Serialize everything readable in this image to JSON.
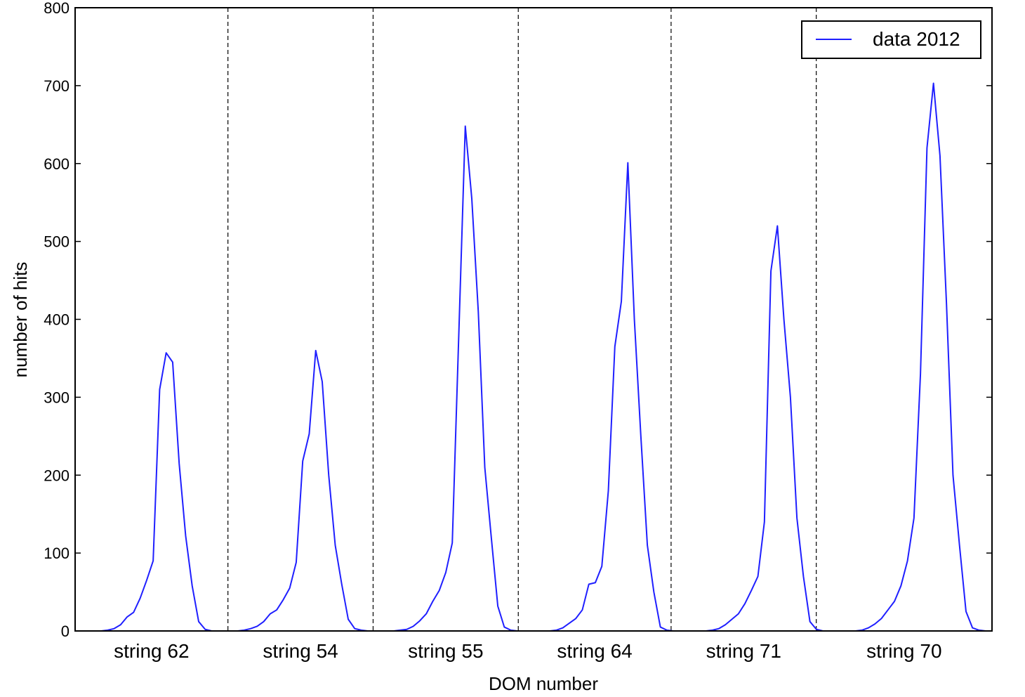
{
  "chart_data": {
    "type": "line",
    "title": "",
    "xlabel": "DOM number",
    "ylabel": "number of hits",
    "ylim": [
      0,
      800
    ],
    "xlim": [
      0,
      120
    ],
    "yticks": [
      0,
      100,
      200,
      300,
      400,
      500,
      600,
      700,
      800
    ],
    "grid": false,
    "legend": {
      "position": "top-right",
      "entries": [
        "data 2012"
      ]
    },
    "colors": {
      "series": "#1f1fff",
      "axis": "#000000",
      "separator": "#000000"
    },
    "groups": [
      {
        "label": "string 62",
        "start": 0,
        "end": 20
      },
      {
        "label": "string 54",
        "start": 20,
        "end": 39
      },
      {
        "label": "string 55",
        "start": 39,
        "end": 58
      },
      {
        "label": "string 64",
        "start": 58,
        "end": 78
      },
      {
        "label": "string 71",
        "start": 78,
        "end": 97
      },
      {
        "label": "string 70",
        "start": 97,
        "end": 120
      }
    ],
    "separators": [
      20,
      39,
      58,
      78,
      97
    ],
    "series": [
      {
        "name": "data 2012",
        "values": [
          0,
          0,
          0,
          0,
          0,
          1,
          3,
          8,
          18,
          24,
          42,
          65,
          90,
          310,
          357,
          345,
          215,
          122,
          58,
          12,
          2,
          0,
          0,
          0,
          0,
          0,
          1,
          3,
          6,
          12,
          22,
          27,
          40,
          55,
          88,
          218,
          253,
          360,
          320,
          200,
          110,
          60,
          15,
          3,
          1,
          0,
          0,
          0,
          0,
          0,
          1,
          2,
          6,
          13,
          22,
          38,
          52,
          75,
          113,
          380,
          648,
          555,
          410,
          210,
          120,
          32,
          5,
          1,
          0,
          0,
          0,
          0,
          0,
          0,
          1,
          4,
          10,
          16,
          27,
          60,
          62,
          83,
          180,
          365,
          423,
          601,
          400,
          250,
          110,
          50,
          5,
          1,
          0,
          0,
          0,
          0,
          0,
          0,
          1,
          3,
          8,
          15,
          22,
          35,
          52,
          70,
          140,
          462,
          520,
          400,
          300,
          145,
          70,
          12,
          2,
          0,
          0,
          0,
          0,
          0,
          0,
          1,
          4,
          9,
          16,
          27,
          38,
          58,
          90,
          145,
          330,
          620,
          703,
          610,
          420,
          200,
          110,
          25,
          4,
          1,
          0,
          0
        ]
      }
    ]
  }
}
